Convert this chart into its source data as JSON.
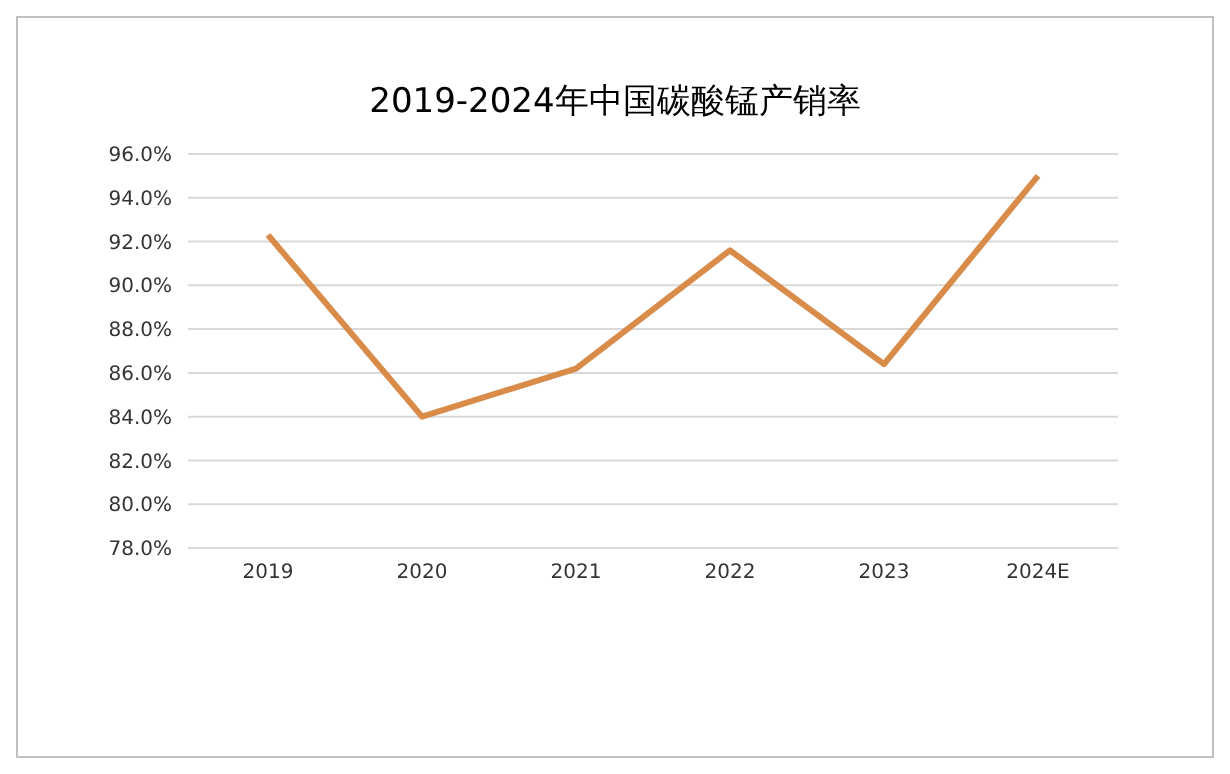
{
  "chart_data": {
    "type": "line",
    "title": "2019-2024年中国碳酸锰产销率",
    "categories": [
      "2019",
      "2020",
      "2021",
      "2022",
      "2023",
      "2024E"
    ],
    "series": [
      {
        "color": "#d98b4a",
        "values": [
          92.3,
          84.0,
          86.2,
          91.6,
          86.4,
          95.0
        ]
      }
    ],
    "ylim": [
      78,
      96
    ],
    "yticks": [
      {
        "value": 78,
        "label": "78.0%"
      },
      {
        "value": 80,
        "label": "80.0%"
      },
      {
        "value": 82,
        "label": "82.0%"
      },
      {
        "value": 84,
        "label": "84.0%"
      },
      {
        "value": 86,
        "label": "86.0%"
      },
      {
        "value": 88,
        "label": "88.0%"
      },
      {
        "value": 90,
        "label": "90.0%"
      },
      {
        "value": 92,
        "label": "92.0%"
      },
      {
        "value": 94,
        "label": "94.0%"
      },
      {
        "value": 96,
        "label": "96.0%"
      }
    ],
    "grid": "y",
    "marker": "none",
    "line_style": "solid",
    "legend": false
  }
}
